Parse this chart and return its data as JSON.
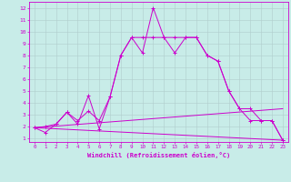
{
  "xlabel": "Windchill (Refroidissement éolien,°C)",
  "xlim": [
    -0.5,
    23.5
  ],
  "ylim": [
    0.7,
    12.5
  ],
  "yticks": [
    1,
    2,
    3,
    4,
    5,
    6,
    7,
    8,
    9,
    10,
    11,
    12
  ],
  "xticks": [
    0,
    1,
    2,
    3,
    4,
    5,
    6,
    7,
    8,
    9,
    10,
    11,
    12,
    13,
    14,
    15,
    16,
    17,
    18,
    19,
    20,
    21,
    22,
    23
  ],
  "bg_color": "#c8ece8",
  "line_color": "#cc00cc",
  "grid_color": "#b0cccc",
  "line1_x": [
    0,
    1,
    2,
    3,
    4,
    5,
    6,
    7,
    8,
    9,
    10,
    11,
    12,
    13,
    14,
    15,
    16,
    17,
    18,
    19,
    20,
    21,
    22,
    23
  ],
  "line1_y": [
    1.9,
    1.5,
    2.2,
    3.2,
    2.2,
    4.6,
    1.8,
    4.5,
    8.0,
    9.5,
    8.2,
    12.0,
    9.5,
    8.2,
    9.5,
    9.5,
    8.0,
    7.5,
    5.0,
    3.5,
    2.5,
    2.5,
    2.5,
    0.85
  ],
  "line2_x": [
    0,
    1,
    2,
    3,
    4,
    5,
    6,
    7,
    8,
    9,
    10,
    11,
    12,
    13,
    14,
    15,
    16,
    17,
    18,
    19,
    20,
    21,
    22,
    23
  ],
  "line2_y": [
    1.9,
    2.0,
    2.2,
    3.2,
    2.5,
    3.3,
    2.5,
    4.5,
    8.0,
    9.5,
    9.5,
    9.5,
    9.5,
    9.5,
    9.5,
    9.5,
    8.0,
    7.5,
    5.0,
    3.5,
    3.5,
    2.5,
    2.5,
    0.85
  ],
  "line3_x": [
    0,
    23
  ],
  "line3_y": [
    1.9,
    3.5
  ],
  "line4_x": [
    0,
    23
  ],
  "line4_y": [
    1.9,
    0.85
  ]
}
